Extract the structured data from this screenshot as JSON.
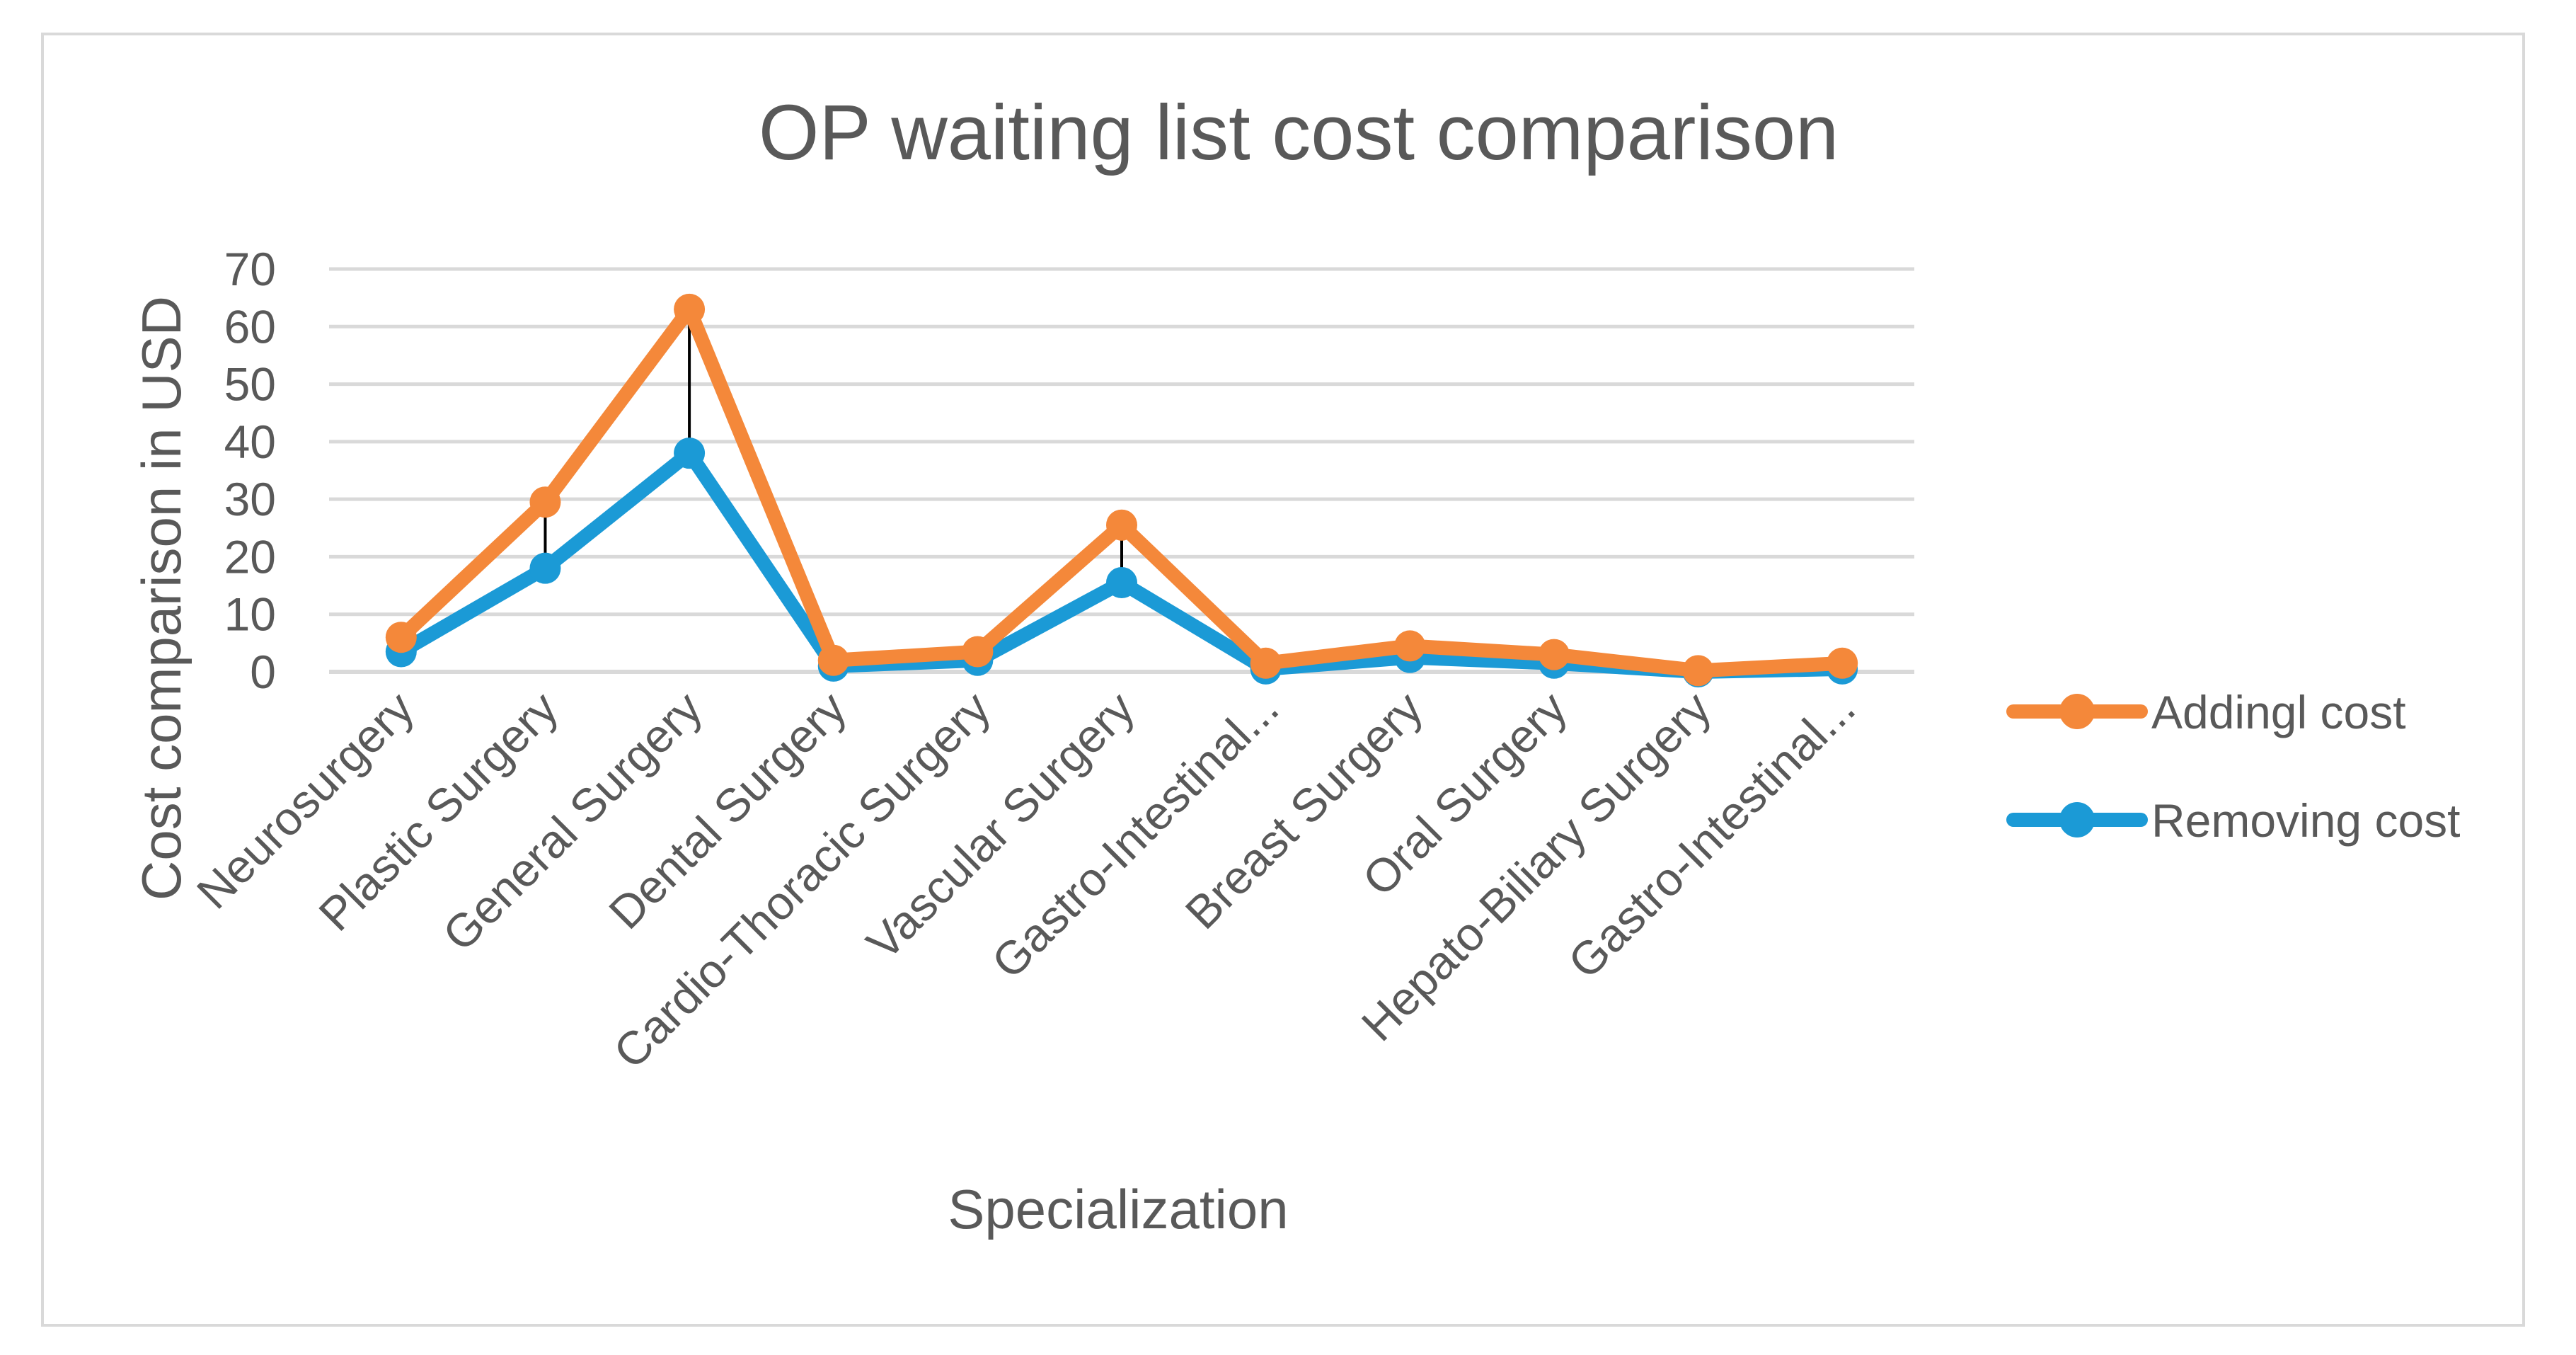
{
  "chart_data": {
    "type": "line",
    "title": "OP waiting list cost comparison",
    "xlabel": "Specialization",
    "ylabel": "Cost comparison in USD",
    "ylim": [
      0,
      70
    ],
    "yticks": [
      "0",
      "10",
      "20",
      "30",
      "40",
      "50",
      "60",
      "70"
    ],
    "grid": true,
    "legend_position": "right",
    "categories": [
      "Neurosurgery",
      "Plastic Surgery",
      "General Surgery",
      "Dental Surgery",
      "Cardio-Thoracic Surgery",
      "Vascular Surgery",
      "Gastro-Intestinal...",
      "Breast Surgery",
      "Oral Surgery",
      "Hepato-Biliary Surgery",
      "Gastro-Intestinal..."
    ],
    "series": [
      {
        "name": "Addingl cost",
        "color": "#f4883a",
        "values": [
          6,
          29.5,
          63,
          2,
          3.5,
          25.5,
          1.5,
          4.5,
          3,
          0.2,
          1.5
        ]
      },
      {
        "name": "Removing cost",
        "color": "#1b9ad6",
        "values": [
          3.5,
          18,
          38,
          1,
          2,
          15.5,
          0.5,
          2.5,
          1.5,
          0,
          0.5
        ]
      }
    ]
  }
}
